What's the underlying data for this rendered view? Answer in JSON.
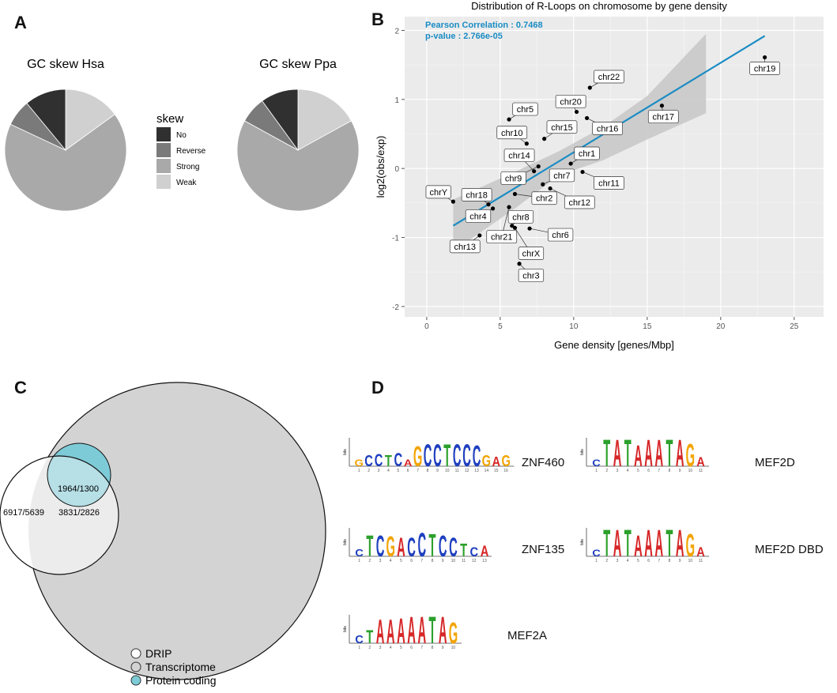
{
  "panels": {
    "a": "A",
    "b": "B",
    "c": "C",
    "d": "D"
  },
  "pie_legend": {
    "title": "skew",
    "items": [
      {
        "label": "No",
        "color": "#303030"
      },
      {
        "label": "Reverse",
        "color": "#7a7a7a"
      },
      {
        "label": "Strong",
        "color": "#a9a9a9"
      },
      {
        "label": "Weak",
        "color": "#d0d0d0"
      }
    ]
  },
  "chart_data": [
    {
      "type": "pie",
      "title": "GC skew Hsa",
      "labels": [
        "Weak",
        "Strong",
        "Reverse",
        "No"
      ],
      "values": [
        15,
        67,
        7,
        11
      ]
    },
    {
      "type": "pie",
      "title": "GC skew Ppa",
      "labels": [
        "Weak",
        "Strong",
        "Reverse",
        "No"
      ],
      "values": [
        17,
        66,
        7,
        10
      ]
    },
    {
      "type": "scatter",
      "title": "Distribution of R-Loops on chromosome by gene density",
      "xlabel": "Gene density [genes/Mbp]",
      "ylabel": "log2(obs/exp)",
      "xlim": [
        -1.5,
        27
      ],
      "ylim": [
        -2.15,
        2.2
      ],
      "xticks": [
        0,
        5,
        10,
        15,
        20,
        25
      ],
      "yticks": [
        -2,
        -1,
        0,
        1,
        2
      ],
      "annotation": {
        "correlation": "Pearson Correlation :  0.7468",
        "pvalue": "p-value : 2.766e-05"
      },
      "regression": {
        "x1": 1.8,
        "y1": -0.83,
        "x2": 23,
        "y2": 1.92
      },
      "ribbon": {
        "upper": [
          [
            1.8,
            -0.45
          ],
          [
            6,
            -0.05
          ],
          [
            9,
            0.25
          ],
          [
            12,
            0.6
          ],
          [
            15,
            1.05
          ],
          [
            19,
            1.95
          ]
        ],
        "lower": [
          [
            1.8,
            -1.2
          ],
          [
            6,
            -0.58
          ],
          [
            9,
            -0.1
          ],
          [
            12,
            0.12
          ],
          [
            15,
            0.42
          ],
          [
            19,
            0.8
          ]
        ]
      },
      "points": [
        {
          "x": 1.8,
          "y": -0.48,
          "label": "chrY",
          "lx": 0.8,
          "ly": -0.34
        },
        {
          "x": 4.2,
          "y": -0.52,
          "label": "chr18",
          "lx": 3.4,
          "ly": -0.38
        },
        {
          "x": 4.5,
          "y": -0.58,
          "label": "chr4",
          "lx": 3.5,
          "ly": -0.69
        },
        {
          "x": 3.6,
          "y": -0.97,
          "label": "chr13",
          "lx": 2.6,
          "ly": -1.13
        },
        {
          "x": 5.6,
          "y": -0.56,
          "label": "chr21",
          "lx": 5.1,
          "ly": -0.99
        },
        {
          "x": 5.8,
          "y": -0.83,
          "label": "chr8",
          "lx": 6.4,
          "ly": -0.7
        },
        {
          "x": 6.0,
          "y": -0.86,
          "label": "chrX",
          "lx": 7.1,
          "ly": -1.23
        },
        {
          "x": 7.0,
          "y": -0.87,
          "label": "chr6",
          "lx": 9.1,
          "ly": -0.96
        },
        {
          "x": 6.3,
          "y": -1.38,
          "label": "chr3",
          "lx": 7.1,
          "ly": -1.55
        },
        {
          "x": 6.0,
          "y": -0.37,
          "label": "chr2",
          "lx": 8.0,
          "ly": -0.43
        },
        {
          "x": 7.9,
          "y": -0.23,
          "label": "chr7",
          "lx": 9.2,
          "ly": -0.1
        },
        {
          "x": 8.4,
          "y": -0.29,
          "label": "chr12",
          "lx": 10.4,
          "ly": -0.49
        },
        {
          "x": 9.8,
          "y": 0.07,
          "label": "chr1",
          "lx": 10.9,
          "ly": 0.22
        },
        {
          "x": 10.6,
          "y": -0.05,
          "label": "chr11",
          "lx": 12.4,
          "ly": -0.21
        },
        {
          "x": 7.6,
          "y": 0.03,
          "label": "chr9",
          "lx": 5.9,
          "ly": -0.14
        },
        {
          "x": 7.3,
          "y": -0.04,
          "label": "chr14",
          "lx": 6.3,
          "ly": 0.19
        },
        {
          "x": 6.8,
          "y": 0.36,
          "label": "chr10",
          "lx": 5.8,
          "ly": 0.52
        },
        {
          "x": 8.0,
          "y": 0.43,
          "label": "chr15",
          "lx": 9.2,
          "ly": 0.6
        },
        {
          "x": 5.6,
          "y": 0.71,
          "label": "chr5",
          "lx": 6.7,
          "ly": 0.86
        },
        {
          "x": 10.2,
          "y": 0.82,
          "label": "chr20",
          "lx": 9.8,
          "ly": 0.97
        },
        {
          "x": 10.9,
          "y": 0.73,
          "label": "chr16",
          "lx": 12.3,
          "ly": 0.58
        },
        {
          "x": 11.1,
          "y": 1.17,
          "label": "chr22",
          "lx": 12.4,
          "ly": 1.33
        },
        {
          "x": 16.0,
          "y": 0.91,
          "label": "chr17",
          "lx": 16.1,
          "ly": 0.75
        },
        {
          "x": 23.0,
          "y": 1.61,
          "label": "chr19",
          "lx": 23.0,
          "ly": 1.45
        }
      ]
    }
  ],
  "venn": {
    "drip_label": "6917/5639",
    "overlap_label": "3831/2826",
    "protein_label": "1964/1300",
    "legend": [
      {
        "label": "DRIP",
        "color": "#ffffff"
      },
      {
        "label": "Transcriptome",
        "color": "#d3d3d3"
      },
      {
        "label": "Protein coding",
        "color": "#7ecbd8"
      }
    ]
  },
  "motifs": [
    {
      "name": "ZNF460",
      "sequence": "GCCTCAGCCTCCCGAG"
    },
    {
      "name": "MEF2D",
      "sequence": "CTATAAATAGA"
    },
    {
      "name": "ZNF135",
      "sequence": "CTCGACCTCCTCA"
    },
    {
      "name": "MEF2D DBD",
      "sequence": "CTATAAATAGA"
    },
    {
      "name": "MEF2A",
      "sequence": "CTAAAAATAG"
    }
  ],
  "motif_axis": "bits",
  "nucleotide_colors": {
    "A": "#d62728",
    "C": "#1f3fbf",
    "G": "#f2a400",
    "T": "#2ca02c"
  }
}
